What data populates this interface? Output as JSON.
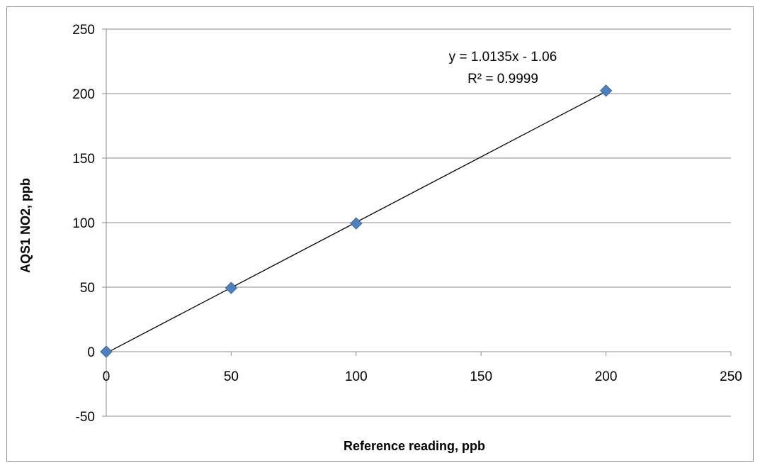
{
  "chart_data": {
    "type": "scatter",
    "title": "",
    "xlabel": "Reference reading, ppb",
    "ylabel": "AQS1 NO2, ppb",
    "xlim": [
      0,
      250
    ],
    "ylim": [
      -50,
      250
    ],
    "xticks": [
      "0",
      "50",
      "100",
      "150",
      "200",
      "250"
    ],
    "yticks": [
      "-50",
      "0",
      "50",
      "100",
      "150",
      "200",
      "250"
    ],
    "grid": "horizontal",
    "legend": "none",
    "series": [
      {
        "x": [
          0,
          50,
          100,
          200
        ],
        "y": [
          0,
          49.4,
          99.4,
          202.3
        ],
        "marker": "diamond",
        "color": "#4f81bd"
      }
    ],
    "trendline": {
      "type": "linear",
      "slope": 1.0135,
      "intercept": -1.06,
      "x_range": [
        0,
        200
      ],
      "color": "#000000",
      "equation_label": "y = 1.0135x - 1.06",
      "r2_label": "R² = 0.9999"
    }
  }
}
